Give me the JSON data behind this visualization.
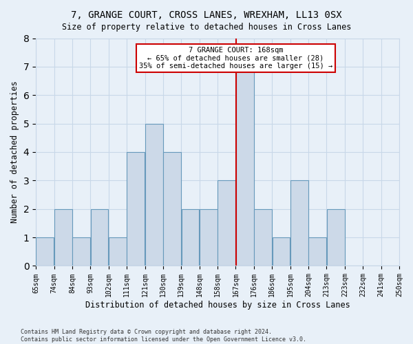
{
  "title": "7, GRANGE COURT, CROSS LANES, WREXHAM, LL13 0SX",
  "subtitle": "Size of property relative to detached houses in Cross Lanes",
  "xlabel": "Distribution of detached houses by size in Cross Lanes",
  "ylabel": "Number of detached properties",
  "bin_labels": [
    "65sqm",
    "74sqm",
    "84sqm",
    "93sqm",
    "102sqm",
    "111sqm",
    "121sqm",
    "130sqm",
    "139sqm",
    "148sqm",
    "158sqm",
    "167sqm",
    "176sqm",
    "186sqm",
    "195sqm",
    "204sqm",
    "213sqm",
    "223sqm",
    "232sqm",
    "241sqm",
    "250sqm"
  ],
  "values": [
    1,
    2,
    1,
    2,
    1,
    4,
    5,
    4,
    2,
    2,
    3,
    7,
    2,
    1,
    3,
    1,
    2,
    0,
    0,
    0
  ],
  "bar_color": "#ccd9e8",
  "bar_edge_color": "#6699bb",
  "grid_color": "#c8d8e8",
  "subject_bin_index": 11,
  "subject_line_color": "#cc0000",
  "annotation_text": "7 GRANGE COURT: 168sqm\n← 65% of detached houses are smaller (28)\n35% of semi-detached houses are larger (15) →",
  "annotation_box_color": "#cc0000",
  "footnote": "Contains HM Land Registry data © Crown copyright and database right 2024.\nContains public sector information licensed under the Open Government Licence v3.0.",
  "ylim": [
    0,
    8
  ],
  "yticks": [
    0,
    1,
    2,
    3,
    4,
    5,
    6,
    7,
    8
  ],
  "bg_color": "#e8f0f8",
  "plot_bg_color": "#e8f0f8"
}
